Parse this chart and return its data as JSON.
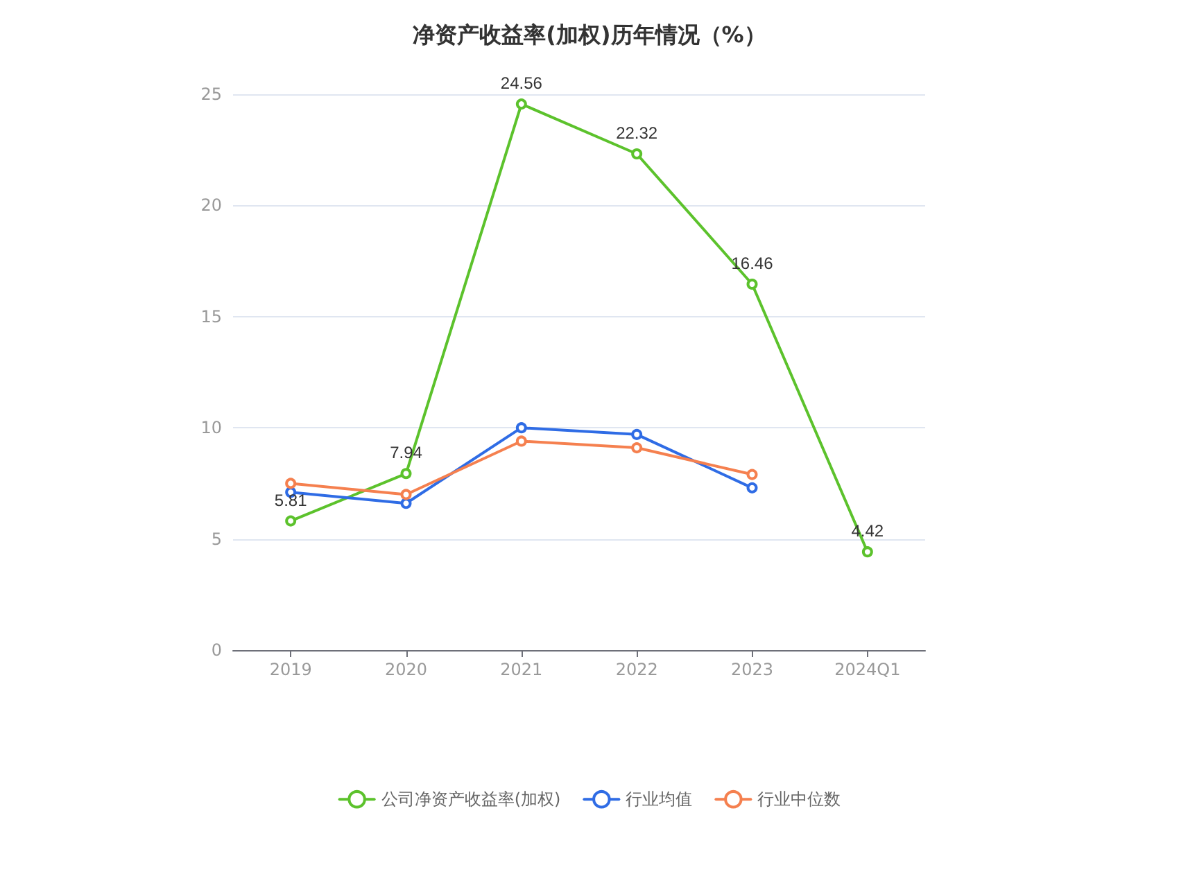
{
  "chart_data": {
    "type": "line",
    "title": "净资产收益率(加权)历年情况（%）",
    "categories": [
      "2019",
      "2020",
      "2021",
      "2022",
      "2023",
      "2024Q1"
    ],
    "series": [
      {
        "name": "公司净资产收益率(加权)",
        "color": "#5cc22c",
        "values": [
          5.81,
          7.94,
          24.56,
          22.32,
          16.46,
          4.42
        ],
        "value_labels": [
          "5.81",
          "7.94",
          "24.56",
          "22.32",
          "16.46",
          "4.42"
        ]
      },
      {
        "name": "行业均值",
        "color": "#2f6ce5",
        "values": [
          7.1,
          6.6,
          10.0,
          9.7,
          7.3,
          null
        ]
      },
      {
        "name": "行业中位数",
        "color": "#f5804f",
        "values": [
          7.5,
          7.0,
          9.4,
          9.1,
          7.9,
          null
        ]
      }
    ],
    "ylim": [
      0,
      25
    ],
    "yticks": [
      0,
      5,
      10,
      15,
      20,
      25
    ],
    "grid": "y",
    "legend": "bottom",
    "marker": "circle",
    "line_style": "solid"
  }
}
